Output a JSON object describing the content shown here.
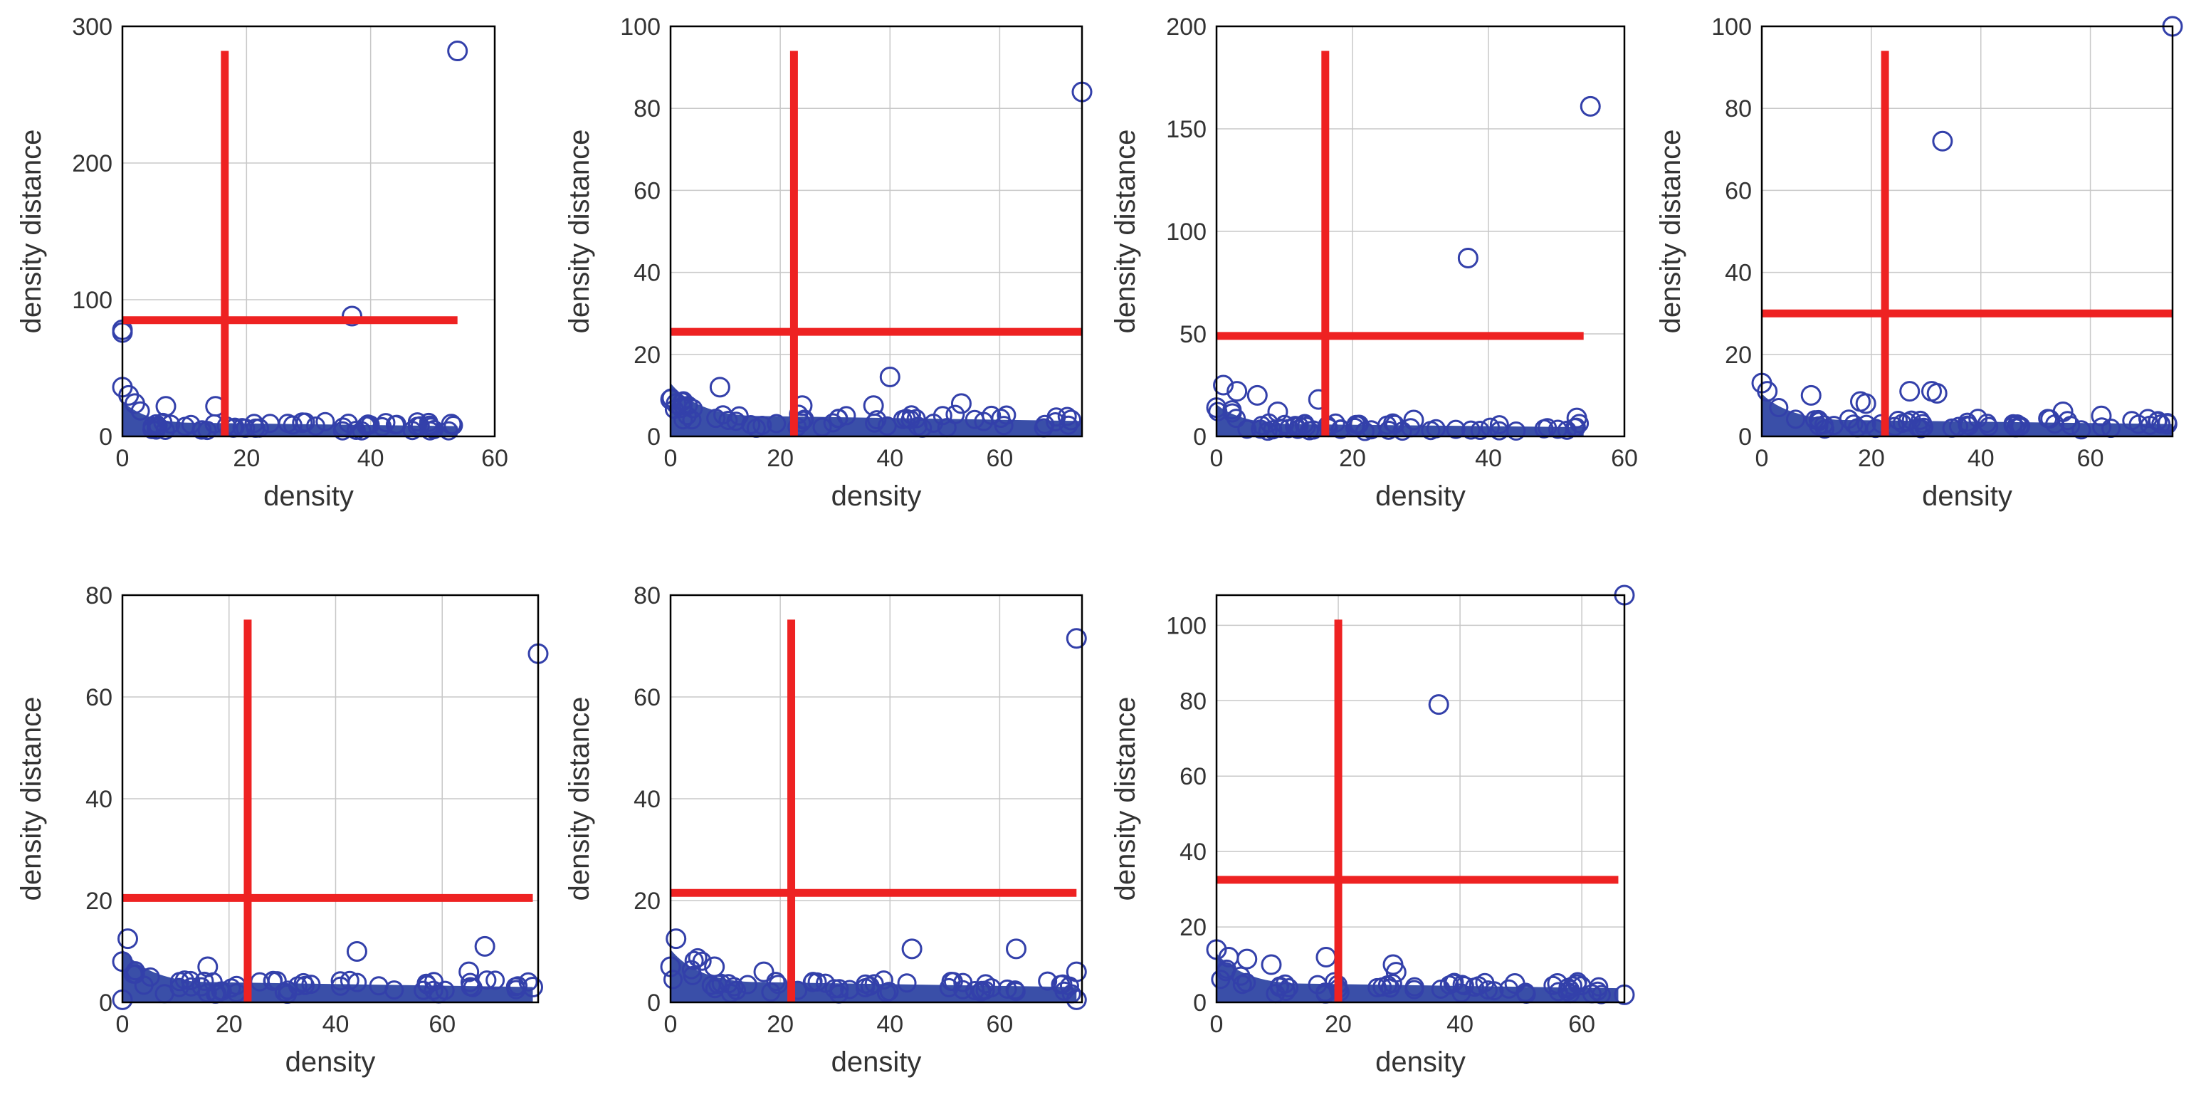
{
  "chart_data": [
    {
      "type": "scatter",
      "title": "",
      "xlabel": "density",
      "ylabel": "density distance",
      "xlim": [
        0,
        60
      ],
      "ylim": [
        0,
        300
      ],
      "grid": true,
      "xticks": [
        0,
        20,
        40,
        60
      ],
      "yticks": [
        0,
        100,
        200,
        300
      ],
      "x_extent": 54,
      "band_height": 10,
      "threshold_x": 16.5,
      "threshold_y": 85,
      "points": [
        [
          54,
          282
        ],
        [
          37,
          88
        ],
        [
          0,
          78
        ],
        [
          0,
          76
        ],
        [
          0,
          36
        ],
        [
          1,
          30
        ],
        [
          2,
          24
        ],
        [
          7,
          22
        ],
        [
          15,
          22
        ],
        [
          29,
          10
        ],
        [
          53,
          9
        ]
      ]
    },
    {
      "type": "scatter",
      "title": "",
      "xlabel": "density",
      "ylabel": "density distance",
      "xlim": [
        0,
        75
      ],
      "ylim": [
        0,
        100
      ],
      "grid": true,
      "xticks": [
        0,
        20,
        40,
        60
      ],
      "yticks": [
        0,
        20,
        40,
        60,
        80,
        100
      ],
      "x_extent": 75,
      "band_height": 5,
      "threshold_x": 22.5,
      "threshold_y": 25.5,
      "points": [
        [
          75,
          84
        ],
        [
          40,
          14.5
        ],
        [
          9,
          12
        ],
        [
          53,
          8
        ],
        [
          24,
          7.5
        ],
        [
          37,
          7.5
        ],
        [
          0,
          9
        ],
        [
          1,
          8
        ],
        [
          2,
          7
        ],
        [
          73,
          4
        ]
      ]
    },
    {
      "type": "scatter",
      "title": "",
      "xlabel": "density",
      "ylabel": "density distance",
      "xlim": [
        0,
        60
      ],
      "ylim": [
        0,
        200
      ],
      "grid": true,
      "xticks": [
        0,
        20,
        40,
        60
      ],
      "yticks": [
        0,
        50,
        100,
        150,
        200
      ],
      "x_extent": 54,
      "band_height": 6,
      "threshold_x": 16,
      "threshold_y": 49,
      "points": [
        [
          55,
          161
        ],
        [
          37,
          87
        ],
        [
          1,
          25
        ],
        [
          3,
          22
        ],
        [
          6,
          20
        ],
        [
          15,
          18
        ],
        [
          9,
          12
        ],
        [
          0,
          14
        ],
        [
          53,
          9
        ],
        [
          29,
          8
        ]
      ]
    },
    {
      "type": "scatter",
      "title": "",
      "xlabel": "density",
      "ylabel": "density distance",
      "xlim": [
        0,
        75
      ],
      "ylim": [
        0,
        100
      ],
      "grid": true,
      "xticks": [
        0,
        20,
        40,
        60
      ],
      "yticks": [
        0,
        20,
        40,
        60,
        80,
        100
      ],
      "x_extent": 75,
      "band_height": 4,
      "threshold_x": 22.5,
      "threshold_y": 30,
      "points": [
        [
          75,
          100
        ],
        [
          33,
          72
        ],
        [
          0,
          13
        ],
        [
          1,
          11
        ],
        [
          9,
          10
        ],
        [
          27,
          11
        ],
        [
          31,
          11
        ],
        [
          32,
          10.5
        ],
        [
          18,
          8.5
        ],
        [
          19,
          8
        ],
        [
          55,
          6
        ],
        [
          62,
          5
        ],
        [
          74,
          3
        ]
      ]
    },
    {
      "type": "scatter",
      "title": "",
      "xlabel": "density",
      "ylabel": "density distance",
      "xlim": [
        0,
        78
      ],
      "ylim": [
        0,
        80
      ],
      "grid": true,
      "xticks": [
        0,
        20,
        40,
        60
      ],
      "yticks": [
        0,
        20,
        40,
        60,
        80
      ],
      "x_extent": 77,
      "band_height": 4,
      "threshold_x": 23.5,
      "threshold_y": 20.5,
      "points": [
        [
          78,
          68.5
        ],
        [
          1,
          12.5
        ],
        [
          44,
          10
        ],
        [
          68,
          11
        ],
        [
          0,
          8
        ],
        [
          16,
          7
        ],
        [
          65,
          6
        ],
        [
          77,
          3
        ],
        [
          0,
          0.5
        ]
      ]
    },
    {
      "type": "scatter",
      "title": "",
      "xlabel": "density",
      "ylabel": "density distance",
      "xlim": [
        0,
        75
      ],
      "ylim": [
        0,
        80
      ],
      "grid": true,
      "xticks": [
        0,
        20,
        40,
        60
      ],
      "yticks": [
        0,
        20,
        40,
        60,
        80
      ],
      "x_extent": 74,
      "band_height": 4,
      "threshold_x": 22,
      "threshold_y": 21.5,
      "points": [
        [
          74,
          71.5
        ],
        [
          1,
          12.5
        ],
        [
          44,
          10.5
        ],
        [
          63,
          10.5
        ],
        [
          0,
          7
        ],
        [
          8,
          7
        ],
        [
          17,
          6
        ],
        [
          74,
          6
        ],
        [
          74,
          0.5
        ]
      ]
    },
    {
      "type": "scatter",
      "title": "",
      "xlabel": "density",
      "ylabel": "density distance",
      "xlim": [
        0,
        67
      ],
      "ylim": [
        0,
        108
      ],
      "grid": true,
      "xticks": [
        0,
        20,
        40,
        60
      ],
      "yticks": [
        0,
        20,
        40,
        60,
        80,
        100
      ],
      "x_extent": 66,
      "band_height": 5,
      "threshold_x": 20,
      "threshold_y": 32.5,
      "points": [
        [
          67,
          108
        ],
        [
          36.5,
          79
        ],
        [
          0,
          14
        ],
        [
          2,
          12
        ],
        [
          5,
          11.5
        ],
        [
          9,
          10
        ],
        [
          18,
          12
        ],
        [
          29,
          10
        ],
        [
          29.5,
          8
        ],
        [
          49,
          5
        ],
        [
          56,
          5
        ],
        [
          67,
          2
        ]
      ]
    }
  ]
}
